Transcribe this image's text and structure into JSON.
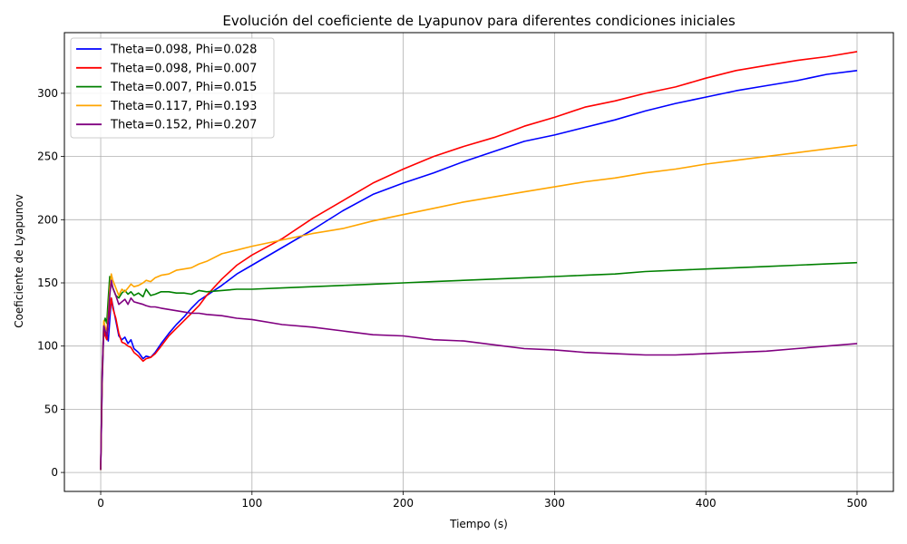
{
  "chart_data": {
    "type": "line",
    "title": "Evolución del coeficiente de Lyapunov para diferentes condiciones iniciales",
    "xlabel": "Tiempo (s)",
    "ylabel": "Coeficiente de Lyapunov",
    "xlim": [
      -24,
      524
    ],
    "ylim": [
      -15,
      348
    ],
    "xticks": [
      0,
      100,
      200,
      300,
      400,
      500
    ],
    "yticks": [
      0,
      50,
      100,
      150,
      200,
      250,
      300
    ],
    "grid": true,
    "legend_position": "upper-left",
    "series": [
      {
        "name": "Theta=0.098, Phi=0.028",
        "color": "#0000ff",
        "x": [
          0,
          1,
          2,
          3,
          4,
          5,
          6,
          7,
          8,
          10,
          12,
          14,
          16,
          18,
          20,
          22,
          25,
          28,
          30,
          33,
          36,
          40,
          45,
          50,
          55,
          60,
          65,
          70,
          80,
          90,
          100,
          120,
          140,
          160,
          180,
          200,
          220,
          240,
          260,
          280,
          300,
          320,
          340,
          360,
          380,
          400,
          420,
          440,
          460,
          480,
          500
        ],
        "y": [
          2,
          70,
          112,
          108,
          110,
          104,
          120,
          138,
          132,
          120,
          108,
          105,
          107,
          102,
          105,
          98,
          95,
          90,
          92,
          91,
          95,
          102,
          110,
          117,
          123,
          130,
          136,
          140,
          148,
          157,
          164,
          178,
          192,
          207,
          220,
          229,
          237,
          246,
          254,
          262,
          267,
          273,
          279,
          286,
          292,
          297,
          302,
          306,
          310,
          315,
          318
        ]
      },
      {
        "name": "Theta=0.098, Phi=0.007",
        "color": "#ff0000",
        "x": [
          0,
          1,
          2,
          3,
          4,
          5,
          6,
          7,
          8,
          10,
          12,
          14,
          16,
          18,
          20,
          22,
          25,
          28,
          30,
          33,
          36,
          40,
          45,
          50,
          55,
          60,
          65,
          70,
          80,
          90,
          100,
          120,
          140,
          160,
          180,
          200,
          220,
          240,
          260,
          280,
          300,
          320,
          340,
          360,
          380,
          400,
          420,
          440,
          460,
          480,
          500
        ],
        "y": [
          2,
          75,
          115,
          108,
          105,
          120,
          128,
          138,
          130,
          122,
          110,
          103,
          102,
          100,
          99,
          95,
          92,
          88,
          90,
          91,
          94,
          100,
          108,
          114,
          120,
          126,
          132,
          140,
          153,
          164,
          172,
          185,
          201,
          215,
          229,
          240,
          250,
          258,
          265,
          274,
          281,
          289,
          294,
          300,
          305,
          312,
          318,
          322,
          326,
          329,
          333
        ]
      },
      {
        "name": "Theta=0.007, Phi=0.015",
        "color": "#008000",
        "x": [
          0,
          1,
          2,
          3,
          4,
          5,
          6,
          7,
          8,
          10,
          12,
          14,
          16,
          18,
          20,
          22,
          25,
          28,
          30,
          33,
          36,
          40,
          45,
          50,
          55,
          60,
          65,
          70,
          80,
          90,
          100,
          120,
          140,
          160,
          180,
          200,
          220,
          240,
          260,
          280,
          300,
          320,
          340,
          360,
          380,
          400,
          420,
          440,
          460,
          480,
          500
        ],
        "y": [
          2,
          80,
          118,
          122,
          118,
          138,
          155,
          150,
          146,
          140,
          138,
          142,
          144,
          141,
          143,
          140,
          142,
          139,
          145,
          140,
          141,
          143,
          143,
          142,
          142,
          141,
          144,
          143,
          144,
          145,
          145,
          146,
          147,
          148,
          149,
          150,
          151,
          152,
          153,
          154,
          155,
          156,
          157,
          159,
          160,
          161,
          162,
          163,
          164,
          165,
          166
        ]
      },
      {
        "name": "Theta=0.117, Phi=0.193",
        "color": "#ffa500",
        "x": [
          0,
          1,
          2,
          3,
          4,
          5,
          6,
          7,
          8,
          10,
          12,
          14,
          16,
          18,
          20,
          22,
          25,
          28,
          30,
          33,
          36,
          40,
          45,
          50,
          55,
          60,
          65,
          70,
          80,
          90,
          100,
          120,
          140,
          160,
          180,
          200,
          220,
          240,
          260,
          280,
          300,
          320,
          340,
          360,
          380,
          400,
          420,
          440,
          460,
          480,
          500
        ],
        "y": [
          2,
          78,
          120,
          115,
          112,
          125,
          145,
          157,
          152,
          146,
          140,
          145,
          143,
          146,
          149,
          147,
          148,
          150,
          152,
          151,
          154,
          156,
          157,
          160,
          161,
          162,
          165,
          167,
          173,
          176,
          179,
          184,
          189,
          193,
          199,
          204,
          209,
          214,
          218,
          222,
          226,
          230,
          233,
          237,
          240,
          244,
          247,
          250,
          253,
          256,
          259
        ]
      },
      {
        "name": "Theta=0.152, Phi=0.207",
        "color": "#800080",
        "x": [
          0,
          1,
          2,
          3,
          4,
          5,
          6,
          7,
          8,
          10,
          12,
          14,
          16,
          18,
          20,
          22,
          25,
          28,
          30,
          33,
          36,
          40,
          45,
          50,
          55,
          60,
          65,
          70,
          80,
          90,
          100,
          120,
          140,
          160,
          180,
          200,
          220,
          240,
          260,
          280,
          300,
          320,
          340,
          360,
          380,
          400,
          420,
          440,
          460,
          480,
          500
        ],
        "y": [
          2,
          82,
          116,
          112,
          108,
          122,
          140,
          152,
          146,
          140,
          133,
          135,
          137,
          133,
          138,
          135,
          134,
          133,
          132,
          131,
          131,
          130,
          129,
          128,
          127,
          126,
          126,
          125,
          124,
          122,
          121,
          117,
          115,
          112,
          109,
          108,
          105,
          104,
          101,
          98,
          97,
          95,
          94,
          93,
          93,
          94,
          95,
          96,
          98,
          100,
          102
        ]
      }
    ]
  }
}
